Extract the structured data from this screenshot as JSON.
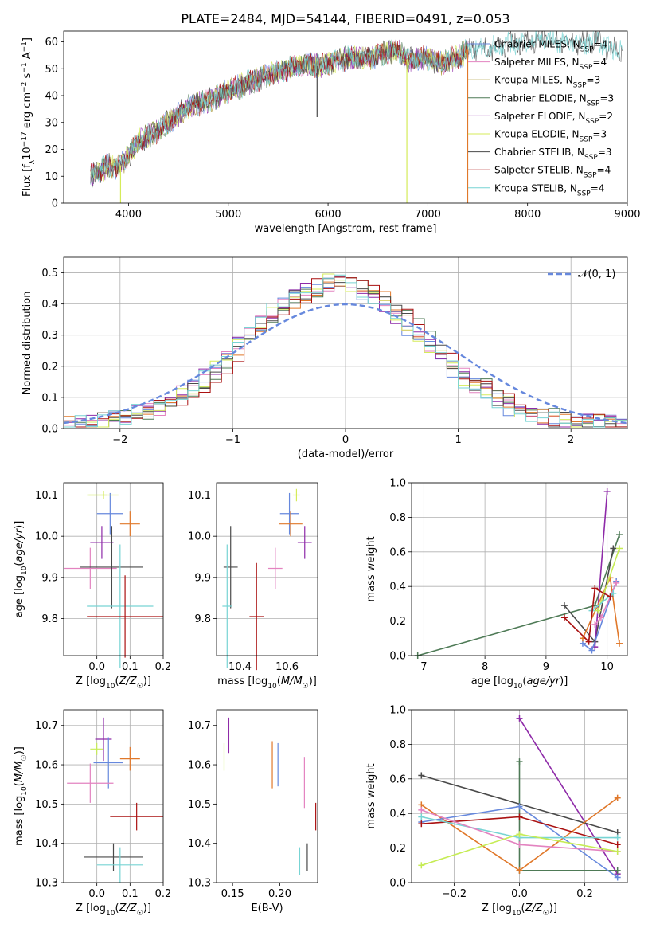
{
  "title": "PLATE=2484, MJD=54144, FIBERID=0491, z=0.053",
  "colors": {
    "chabrier_miles": "#6688dd",
    "salpeter_miles": "#e383c0",
    "kroupa_miles": "#a08a1e",
    "chabrier_elodie": "#4e7a56",
    "salpeter_elodie": "#8e2aa8",
    "kroupa_elodie": "#d5eb5a",
    "chabrier_stelib": "#4a4a4a",
    "salpeter_stelib": "#aa1111",
    "kroupa_stelib": "#77d4d4",
    "orange": "#e0782a",
    "lightgreen": "#c6ec55",
    "gaussian": "#6688dd"
  },
  "chart_data": [
    {
      "id": "spectrum",
      "type": "line",
      "xlabel": "wavelength [Angstrom, rest frame]",
      "ylabel": "Flux [f_λ 10^-17 erg cm^-2 s^-1 A^-1]",
      "xlim": [
        3350,
        9000
      ],
      "ylim": [
        0,
        64
      ],
      "xticks": [
        4000,
        5000,
        6000,
        7000,
        8000,
        9000
      ],
      "yticks": [
        0,
        10,
        20,
        30,
        40,
        50,
        60
      ],
      "legend_position": "top-right",
      "legend": [
        {
          "base": "Chabrier MILES, N",
          "sub": "SSP",
          "val": "=4",
          "color_key": "chabrier_miles"
        },
        {
          "base": "Salpeter MILES, N",
          "sub": "SSP",
          "val": "=4",
          "color_key": "salpeter_miles"
        },
        {
          "base": "Kroupa MILES, N",
          "sub": "SSP",
          "val": "=3",
          "color_key": "kroupa_miles"
        },
        {
          "base": "Chabrier ELODIE, N",
          "sub": "SSP",
          "val": "=3",
          "color_key": "chabrier_elodie"
        },
        {
          "base": "Salpeter ELODIE, N",
          "sub": "SSP",
          "val": "=2",
          "color_key": "salpeter_elodie"
        },
        {
          "base": "Kroupa ELODIE, N",
          "sub": "SSP",
          "val": "=3",
          "color_key": "kroupa_elodie"
        },
        {
          "base": "Chabrier STELIB, N",
          "sub": "SSP",
          "val": "=3",
          "color_key": "chabrier_stelib"
        },
        {
          "base": "Salpeter STELIB, N",
          "sub": "SSP",
          "val": "=4",
          "color_key": "salpeter_stelib"
        },
        {
          "base": "Kroupa STELIB, N",
          "sub": "SSP",
          "val": "=4",
          "color_key": "kroupa_stelib"
        }
      ],
      "continuum": [
        [
          3620,
          10
        ],
        [
          3700,
          12
        ],
        [
          3800,
          14
        ],
        [
          3900,
          13
        ],
        [
          4000,
          18
        ],
        [
          4100,
          23
        ],
        [
          4200,
          25
        ],
        [
          4300,
          27
        ],
        [
          4400,
          30
        ],
        [
          4500,
          33
        ],
        [
          4600,
          36
        ],
        [
          4700,
          37
        ],
        [
          4800,
          38
        ],
        [
          4900,
          40
        ],
        [
          5000,
          42
        ],
        [
          5100,
          43
        ],
        [
          5200,
          45
        ],
        [
          5300,
          46
        ],
        [
          5400,
          48
        ],
        [
          5500,
          49
        ],
        [
          5600,
          50
        ],
        [
          5700,
          51
        ],
        [
          5800,
          52
        ],
        [
          5900,
          51
        ],
        [
          6000,
          52
        ],
        [
          6100,
          53
        ],
        [
          6200,
          54
        ],
        [
          6300,
          54
        ],
        [
          6400,
          54
        ],
        [
          6500,
          55
        ],
        [
          6600,
          56
        ],
        [
          6700,
          57
        ],
        [
          6800,
          53
        ],
        [
          6900,
          54
        ],
        [
          7000,
          54
        ],
        [
          7100,
          52
        ],
        [
          7200,
          53
        ],
        [
          7300,
          54
        ],
        [
          7400,
          57
        ],
        [
          7500,
          57
        ],
        [
          7600,
          57
        ],
        [
          7700,
          58
        ],
        [
          7800,
          59
        ],
        [
          7900,
          60
        ],
        [
          8000,
          60
        ],
        [
          8100,
          61
        ],
        [
          8200,
          61
        ],
        [
          8300,
          60
        ],
        [
          8400,
          60
        ],
        [
          8500,
          59
        ],
        [
          8600,
          60
        ],
        [
          8700,
          61
        ],
        [
          8800,
          58
        ],
        [
          8900,
          57
        ]
      ],
      "spikes": [
        {
          "x": 3920,
          "y": 0,
          "color_key": "kroupa_elodie"
        },
        {
          "x": 6790,
          "y": 0,
          "color_key": "kroupa_elodie"
        },
        {
          "x": 7400,
          "y": 0,
          "color_key": "orange"
        },
        {
          "x": 5890,
          "y": 32,
          "color_key": "chabrier_stelib"
        }
      ]
    },
    {
      "id": "residuals",
      "type": "step",
      "xlabel": "(data-model)/error",
      "ylabel": "Normed distribution",
      "xlim": [
        -2.5,
        2.5
      ],
      "ylim": [
        0,
        0.55
      ],
      "xticks": [
        -2,
        -1,
        0,
        1,
        2
      ],
      "yticks": [
        0.0,
        0.1,
        0.2,
        0.3,
        0.4,
        0.5
      ],
      "legend_position": "top-right",
      "gaussian_label": "𝒩(0, 1)",
      "bin_width": 0.1,
      "bins_start": -2.5
    },
    {
      "id": "age_vs_z",
      "type": "errorbar",
      "xlabel": "Z [log₁₀(Z/Z☉)]",
      "ylabel": "age  [log₁₀(age/yr)]",
      "xlim": [
        -0.1,
        0.2
      ],
      "ylim": [
        9.71,
        10.13
      ],
      "xticks": [
        0.0,
        0.1,
        0.2
      ],
      "yticks": [
        9.8,
        9.9,
        10.0,
        10.1
      ],
      "points": [
        {
          "x": 0.04,
          "y": 10.055,
          "xerr": 0.04,
          "yerr": 0.05,
          "color_key": "chabrier_miles"
        },
        {
          "x": 0.1,
          "y": 10.03,
          "xerr": 0.03,
          "yerr": 0.03,
          "color_key": "orange"
        },
        {
          "x": 0.02,
          "y": 10.1,
          "xerr": 0.045,
          "yerr": 0.01,
          "color_key": "kroupa_elodie"
        },
        {
          "x": 0.0,
          "y": 10.1,
          "xerr": 0.03,
          "yerr": 0.0,
          "color_key": "lightgreen"
        },
        {
          "x": 0.015,
          "y": 9.985,
          "xerr": 0.035,
          "yerr": 0.04,
          "color_key": "salpeter_elodie"
        },
        {
          "x": -0.02,
          "y": 9.922,
          "xerr": 0.08,
          "yerr": 0.05,
          "color_key": "salpeter_miles"
        },
        {
          "x": 0.045,
          "y": 9.925,
          "xerr": 0.095,
          "yerr": 0.1,
          "color_key": "chabrier_stelib"
        },
        {
          "x": 0.07,
          "y": 9.83,
          "xerr": 0.1,
          "yerr": 0.15,
          "color_key": "kroupa_stelib"
        },
        {
          "x": 0.085,
          "y": 9.805,
          "xerr": 0.115,
          "yerr": 0.1,
          "color_key": "salpeter_stelib"
        }
      ]
    },
    {
      "id": "age_vs_mass",
      "type": "errorbar",
      "xlabel": "mass [log₁₀(M/M☉)]",
      "ylabel": "",
      "xlim": [
        10.3,
        10.73
      ],
      "ylim": [
        9.71,
        10.13
      ],
      "xticks": [
        10.4,
        10.6
      ],
      "yticks": [
        9.8,
        9.9,
        10.0,
        10.1
      ],
      "points": [
        {
          "x": 10.61,
          "y": 10.055,
          "xerr": 0.04,
          "yerr": 0.05,
          "color_key": "chabrier_miles"
        },
        {
          "x": 10.615,
          "y": 10.03,
          "xerr": 0.05,
          "yerr": 0.03,
          "color_key": "orange"
        },
        {
          "x": 10.64,
          "y": 10.1,
          "xerr": 0.015,
          "yerr": 0.015,
          "color_key": "kroupa_elodie"
        },
        {
          "x": 10.675,
          "y": 9.985,
          "xerr": 0.03,
          "yerr": 0.04,
          "color_key": "salpeter_elodie"
        },
        {
          "x": 10.55,
          "y": 9.922,
          "xerr": 0.03,
          "yerr": 0.05,
          "color_key": "salpeter_miles"
        },
        {
          "x": 10.36,
          "y": 9.925,
          "xerr": 0.03,
          "yerr": 0.1,
          "color_key": "chabrier_stelib"
        },
        {
          "x": 10.345,
          "y": 9.83,
          "xerr": 0.02,
          "yerr": 0.15,
          "color_key": "kroupa_stelib"
        },
        {
          "x": 10.47,
          "y": 9.805,
          "xerr": 0.03,
          "yerr": 0.13,
          "color_key": "salpeter_stelib"
        }
      ]
    },
    {
      "id": "weight_vs_age",
      "type": "line",
      "xlabel": "age  [log₁₀(age/yr)]",
      "ylabel": "mass weight",
      "xlim": [
        6.8,
        10.33
      ],
      "ylim": [
        0,
        1.0
      ],
      "xticks": [
        7,
        8,
        9,
        10
      ],
      "yticks": [
        0.0,
        0.2,
        0.4,
        0.6,
        0.8,
        1.0
      ],
      "series": [
        {
          "color_key": "chabrier_elodie",
          "x": [
            6.9,
            9.8,
            10.2
          ],
          "y": [
            0.0,
            0.29,
            0.7
          ]
        },
        {
          "color_key": "chabrier_stelib",
          "x": [
            9.3,
            9.8,
            10.1
          ],
          "y": [
            0.29,
            0.08,
            0.62
          ]
        },
        {
          "color_key": "salpeter_elodie",
          "x": [
            9.8,
            10.0
          ],
          "y": [
            0.05,
            0.95
          ]
        },
        {
          "color_key": "chabrier_miles",
          "x": [
            9.6,
            9.75,
            10.15
          ],
          "y": [
            0.07,
            0.03,
            0.43
          ]
        },
        {
          "color_key": "orange",
          "x": [
            9.6,
            10.05,
            10.2
          ],
          "y": [
            0.1,
            0.45,
            0.07
          ]
        },
        {
          "color_key": "salpeter_miles",
          "x": [
            9.8,
            9.9,
            10.15
          ],
          "y": [
            0.18,
            0.22,
            0.42
          ]
        },
        {
          "color_key": "lightgreen",
          "x": [
            9.85,
            10.2
          ],
          "y": [
            0.26,
            0.62
          ]
        },
        {
          "color_key": "kroupa_stelib",
          "x": [
            9.75,
            10.1
          ],
          "y": [
            0.26,
            0.36
          ]
        },
        {
          "color_key": "salpeter_stelib",
          "x": [
            9.3,
            9.7,
            9.8,
            10.05
          ],
          "y": [
            0.22,
            0.08,
            0.39,
            0.34
          ]
        }
      ]
    },
    {
      "id": "mass_vs_z",
      "type": "errorbar",
      "xlabel": "Z [log₁₀(Z/Z☉)]",
      "ylabel": "mass [log₁₀(M/M☉)]",
      "xlim": [
        -0.1,
        0.2
      ],
      "ylim": [
        10.3,
        10.74
      ],
      "xticks": [
        0.0,
        0.1,
        0.2
      ],
      "yticks": [
        10.3,
        10.4,
        10.5,
        10.6,
        10.7
      ],
      "points": [
        {
          "x": 0.02,
          "y": 10.665,
          "xerr": 0.025,
          "yerr": 0.055,
          "color_key": "salpeter_elodie"
        },
        {
          "x": 0.0,
          "y": 10.64,
          "xerr": 0.02,
          "yerr": 0.015,
          "color_key": "lightgreen"
        },
        {
          "x": 0.1,
          "y": 10.615,
          "xerr": 0.03,
          "yerr": 0.03,
          "color_key": "orange"
        },
        {
          "x": 0.035,
          "y": 10.605,
          "xerr": 0.045,
          "yerr": 0.065,
          "color_key": "chabrier_miles"
        },
        {
          "x": -0.02,
          "y": 10.553,
          "xerr": 0.07,
          "yerr": 0.05,
          "color_key": "salpeter_miles"
        },
        {
          "x": 0.12,
          "y": 10.468,
          "xerr": 0.08,
          "yerr": 0.035,
          "color_key": "salpeter_stelib"
        },
        {
          "x": 0.05,
          "y": 10.365,
          "xerr": 0.09,
          "yerr": 0.035,
          "color_key": "chabrier_stelib"
        },
        {
          "x": 0.07,
          "y": 10.345,
          "xerr": 0.07,
          "yerr": 0.045,
          "color_key": "kroupa_stelib"
        }
      ]
    },
    {
      "id": "mass_vs_ebv",
      "type": "errorbar",
      "xlabel": "E(B-V)",
      "ylabel": "",
      "xlim": [
        0.133,
        0.24
      ],
      "ylim": [
        10.3,
        10.74
      ],
      "xticks": [
        0.15,
        0.2
      ],
      "yticks": [
        10.3,
        10.4,
        10.5,
        10.6,
        10.7
      ],
      "points": [
        {
          "x": 0.146,
          "y": 10.675,
          "xerr": 0.0,
          "yerr": 0.045,
          "color_key": "salpeter_elodie"
        },
        {
          "x": 0.141,
          "y": 10.62,
          "xerr": 0.0,
          "yerr": 0.035,
          "color_key": "lightgreen"
        },
        {
          "x": 0.192,
          "y": 10.6,
          "xerr": 0.0,
          "yerr": 0.06,
          "color_key": "orange"
        },
        {
          "x": 0.198,
          "y": 10.6,
          "xerr": 0.0,
          "yerr": 0.055,
          "color_key": "chabrier_miles"
        },
        {
          "x": 0.226,
          "y": 10.555,
          "xerr": 0.0,
          "yerr": 0.065,
          "color_key": "salpeter_miles"
        },
        {
          "x": 0.238,
          "y": 10.468,
          "xerr": 0.0,
          "yerr": 0.035,
          "color_key": "salpeter_stelib"
        },
        {
          "x": 0.229,
          "y": 10.365,
          "xerr": 0.0,
          "yerr": 0.035,
          "color_key": "chabrier_stelib"
        },
        {
          "x": 0.221,
          "y": 10.355,
          "xerr": 0.0,
          "yerr": 0.035,
          "color_key": "kroupa_stelib"
        }
      ]
    },
    {
      "id": "weight_vs_z",
      "type": "line",
      "xlabel": "Z [log₁₀(Z/Z☉)]",
      "ylabel": "mass weight",
      "xlim": [
        -0.33,
        0.33
      ],
      "ylim": [
        0,
        1.0
      ],
      "xticks": [
        -0.2,
        0.0,
        0.2
      ],
      "yticks": [
        0.0,
        0.2,
        0.4,
        0.6,
        0.8,
        1.0
      ],
      "series": [
        {
          "color_key": "salpeter_elodie",
          "x": [
            0.0,
            0.3
          ],
          "y": [
            0.95,
            0.05
          ]
        },
        {
          "color_key": "chabrier_elodie",
          "x": [
            0.0,
            0.0,
            0.3
          ],
          "y": [
            0.7,
            0.07,
            0.07
          ]
        },
        {
          "color_key": "chabrier_stelib",
          "x": [
            -0.3,
            0.3
          ],
          "y": [
            0.62,
            0.29
          ]
        },
        {
          "color_key": "orange",
          "x": [
            -0.3,
            0.0,
            0.3
          ],
          "y": [
            0.45,
            0.07,
            0.49
          ]
        },
        {
          "color_key": "chabrier_miles",
          "x": [
            -0.3,
            0.0,
            0.3
          ],
          "y": [
            0.35,
            0.44,
            0.03
          ]
        },
        {
          "color_key": "salpeter_stelib",
          "x": [
            -0.3,
            0.0,
            0.3
          ],
          "y": [
            0.34,
            0.38,
            0.22
          ]
        },
        {
          "color_key": "kroupa_stelib",
          "x": [
            -0.3,
            0.0,
            0.3
          ],
          "y": [
            0.38,
            0.26,
            0.26
          ]
        },
        {
          "color_key": "salpeter_miles",
          "x": [
            -0.3,
            0.0,
            0.3
          ],
          "y": [
            0.42,
            0.22,
            0.18
          ]
        },
        {
          "color_key": "lightgreen",
          "x": [
            -0.3,
            0.0,
            0.3
          ],
          "y": [
            0.1,
            0.28,
            0.18
          ]
        }
      ]
    }
  ]
}
